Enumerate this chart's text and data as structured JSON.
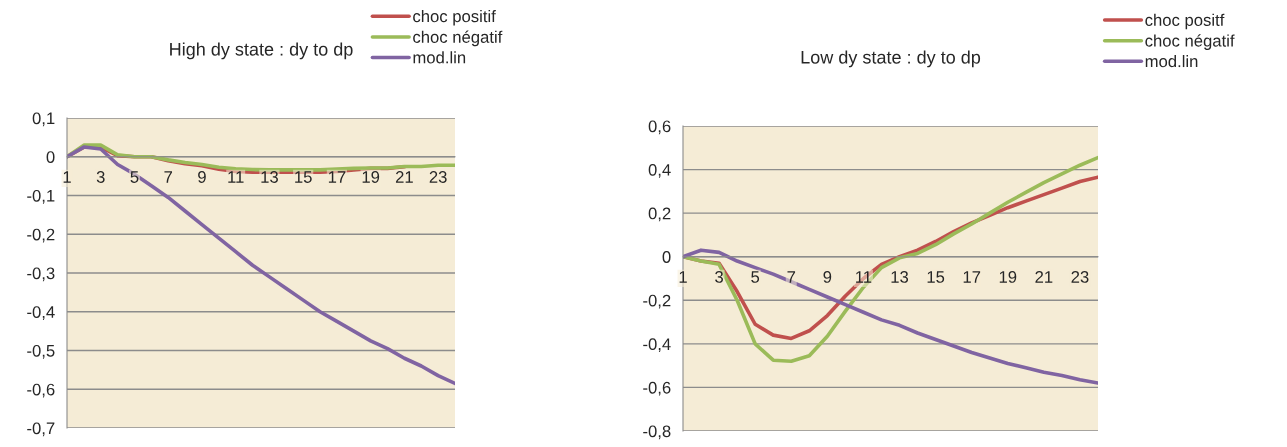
{
  "chart_data": [
    {
      "type": "line",
      "title": "High dy state : dy to dp",
      "categories": [
        "1",
        null,
        "3",
        null,
        "5",
        null,
        "7",
        null,
        "9",
        null,
        "11",
        null,
        "13",
        null,
        "15",
        null,
        "17",
        null,
        "19",
        null,
        "21",
        null,
        "23",
        null
      ],
      "series": [
        {
          "name": "choc positif",
          "color": "#c0504d",
          "values": [
            0,
            0.025,
            0.025,
            0.003,
            0,
            0,
            -0.01,
            -0.018,
            -0.023,
            -0.032,
            -0.038,
            -0.04,
            -0.04,
            -0.04,
            -0.04,
            -0.04,
            -0.038,
            -0.034,
            -0.03,
            -0.03,
            -0.026,
            null,
            null,
            null
          ]
        },
        {
          "name": "choc négatif",
          "color": "#9bbb59",
          "values": [
            0,
            0.03,
            0.03,
            0.005,
            0,
            0,
            -0.008,
            -0.015,
            -0.02,
            -0.027,
            -0.031,
            -0.033,
            -0.034,
            -0.034,
            -0.034,
            -0.034,
            -0.032,
            -0.03,
            -0.029,
            -0.029,
            -0.025,
            -0.025,
            -0.022,
            -0.022
          ]
        },
        {
          "name": "mod.lin",
          "color": "#8064a2",
          "values": [
            0,
            0.025,
            0.02,
            -0.02,
            -0.045,
            -0.075,
            -0.105,
            -0.14,
            -0.175,
            -0.21,
            -0.245,
            -0.28,
            -0.31,
            -0.34,
            -0.37,
            -0.4,
            -0.425,
            -0.45,
            -0.475,
            -0.495,
            -0.52,
            -0.54,
            -0.565,
            -0.585
          ]
        }
      ],
      "ylim": [
        -0.7,
        0.1
      ],
      "yticks": [
        {
          "value": 0.1,
          "label": "0,1"
        },
        0,
        {
          "value": -0.1,
          "label": "-0,1"
        },
        {
          "value": -0.2,
          "label": "-0,2"
        },
        {
          "value": -0.3,
          "label": "-0,3"
        },
        {
          "value": -0.4,
          "label": "-0,4"
        },
        {
          "value": -0.5,
          "label": "-0,5"
        },
        {
          "value": -0.6,
          "label": "-0,6"
        },
        {
          "value": -0.7,
          "label": "-0,7"
        }
      ],
      "grid": "y",
      "legend": "top right",
      "marker": "none",
      "line_style": "solid"
    },
    {
      "type": "line",
      "title": "Low dy state : dy to dp",
      "categories": [
        "1",
        null,
        "3",
        null,
        "5",
        null,
        "7",
        null,
        "9",
        null,
        "11",
        null,
        "13",
        null,
        "15",
        null,
        "17",
        null,
        "19",
        null,
        "21",
        null,
        "23",
        null
      ],
      "series": [
        {
          "name": "choc positf",
          "color": "#c0504d",
          "values": [
            0,
            -0.02,
            -0.03,
            -0.16,
            -0.31,
            -0.36,
            -0.375,
            -0.34,
            -0.27,
            -0.18,
            -0.1,
            -0.035,
            0,
            0.03,
            0.07,
            0.115,
            0.155,
            0.19,
            0.225,
            0.255,
            0.285,
            0.315,
            0.345,
            0.365
          ]
        },
        {
          "name": "choc négatif",
          "color": "#9bbb59",
          "values": [
            0,
            -0.02,
            -0.035,
            -0.2,
            -0.4,
            -0.475,
            -0.48,
            -0.455,
            -0.365,
            -0.25,
            -0.14,
            -0.05,
            -0.005,
            0.015,
            0.055,
            0.105,
            0.15,
            0.2,
            0.25,
            0.295,
            0.34,
            0.38,
            0.42,
            0.455
          ]
        },
        {
          "name": "mod.lin",
          "color": "#8064a2",
          "values": [
            0,
            0.03,
            0.02,
            -0.02,
            -0.05,
            -0.08,
            -0.115,
            -0.15,
            -0.185,
            -0.22,
            -0.255,
            -0.29,
            -0.315,
            -0.35,
            -0.38,
            -0.41,
            -0.44,
            -0.465,
            -0.49,
            -0.51,
            -0.53,
            -0.545,
            -0.565,
            -0.58
          ]
        }
      ],
      "ylim": [
        -0.8,
        0.6
      ],
      "yticks": [
        {
          "value": 0.6,
          "label": "0,6"
        },
        {
          "value": 0.4,
          "label": "0,4"
        },
        {
          "value": 0.2,
          "label": "0,2"
        },
        0,
        {
          "value": -0.2,
          "label": "-0,2"
        },
        {
          "value": -0.4,
          "label": "-0,4"
        },
        {
          "value": -0.6,
          "label": "-0,6"
        },
        {
          "value": -0.8,
          "label": "-0,8"
        }
      ],
      "grid": "y",
      "legend": "top right",
      "marker": "none",
      "line_style": "solid"
    }
  ]
}
